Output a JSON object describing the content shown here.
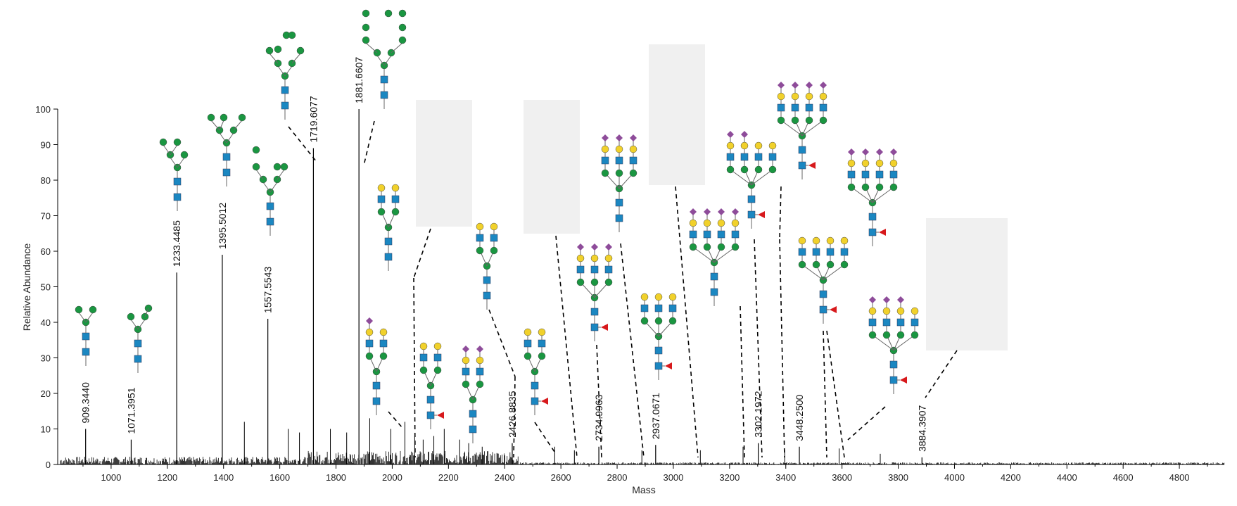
{
  "chart_data": {
    "type": "bar",
    "xlabel": "Mass",
    "ylabel": "Relative Abundance",
    "xlim": [
      810,
      4960
    ],
    "ylim": [
      0,
      100
    ],
    "xticks": [
      1000,
      1200,
      1400,
      1600,
      1800,
      2000,
      2200,
      2400,
      2600,
      2800,
      3000,
      3200,
      3400,
      3600,
      3800,
      4000,
      4200,
      4400,
      4600,
      4800
    ],
    "yticks": [
      0,
      10,
      20,
      30,
      40,
      50,
      60,
      70,
      80,
      90,
      100
    ],
    "grid": false,
    "labeled_peaks": [
      {
        "mass": 909.344,
        "abundance": 10,
        "label": "909.3440"
      },
      {
        "mass": 1071.3951,
        "abundance": 7,
        "label": "1071.3951"
      },
      {
        "mass": 1233.4485,
        "abundance": 54,
        "label": "1233.4485"
      },
      {
        "mass": 1395.5012,
        "abundance": 59,
        "label": "1395.5012"
      },
      {
        "mass": 1557.5543,
        "abundance": 41,
        "label": "1557.5543"
      },
      {
        "mass": 1719.6077,
        "abundance": 89,
        "label": "1719.6077"
      },
      {
        "mass": 1881.6607,
        "abundance": 100,
        "label": "1881.6607"
      },
      {
        "mass": 2426.8835,
        "abundance": 6,
        "label": "2426.8835"
      },
      {
        "mass": 2734.9963,
        "abundance": 5,
        "label": "2734.9963"
      },
      {
        "mass": 2937.0671,
        "abundance": 5.5,
        "label": "2937.0671"
      },
      {
        "mass": 3302.1972,
        "abundance": 6,
        "label": "3302.1972"
      },
      {
        "mass": 3448.25,
        "abundance": 5,
        "label": "3448.2500"
      },
      {
        "mass": 3884.3907,
        "abundance": 2,
        "label": "3884.3907"
      }
    ],
    "minor_peaks": [
      {
        "mass": 1920,
        "abundance": 13
      },
      {
        "mass": 1995,
        "abundance": 10
      },
      {
        "mass": 2045,
        "abundance": 12
      },
      {
        "mass": 2080,
        "abundance": 8
      },
      {
        "mass": 2148,
        "abundance": 8
      },
      {
        "mass": 2185,
        "abundance": 10
      },
      {
        "mass": 2240,
        "abundance": 7
      },
      {
        "mass": 2272,
        "abundance": 6
      },
      {
        "mass": 2320,
        "abundance": 5
      },
      {
        "mass": 1474,
        "abundance": 12
      },
      {
        "mass": 1630,
        "abundance": 10
      },
      {
        "mass": 1670,
        "abundance": 9
      },
      {
        "mass": 1780,
        "abundance": 10
      },
      {
        "mass": 1838,
        "abundance": 9
      },
      {
        "mass": 2110,
        "abundance": 7
      },
      {
        "mass": 2578,
        "abundance": 5
      },
      {
        "mass": 2648,
        "abundance": 4
      },
      {
        "mass": 2888,
        "abundance": 4
      },
      {
        "mass": 3096,
        "abundance": 4
      },
      {
        "mass": 3248,
        "abundance": 5
      },
      {
        "mass": 3396,
        "abundance": 4
      },
      {
        "mass": 3590,
        "abundance": 4.5
      },
      {
        "mass": 3736,
        "abundance": 3
      }
    ],
    "noise_region": [
      820,
      2500
    ],
    "structure_colors": {
      "mannose": "#1a9641",
      "galactose": "#f1d12b",
      "glcnac": "#1b87c1",
      "sialic_acid": "#8e4c9a",
      "fucose": "#d7191c",
      "hidden_block": "#f0f0f0"
    }
  }
}
